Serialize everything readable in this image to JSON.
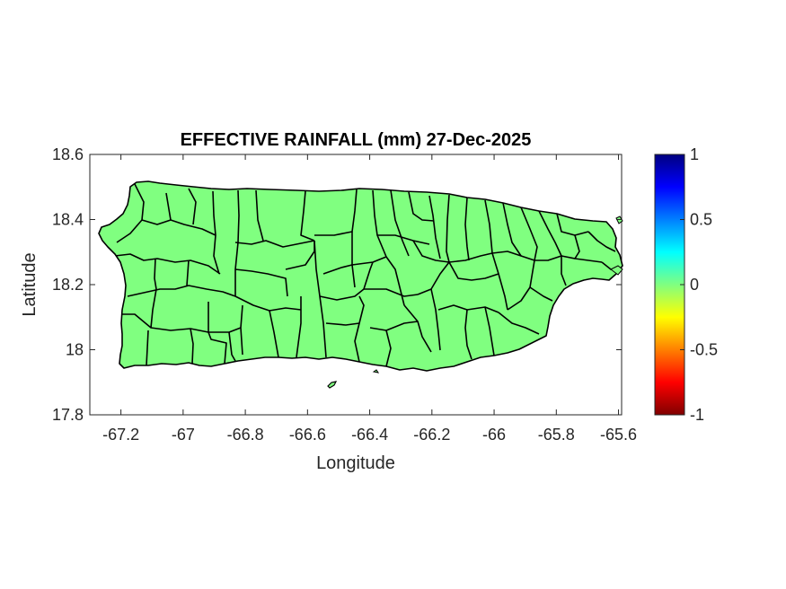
{
  "chart_data": {
    "type": "map",
    "title": "EFFECTIVE RAINFALL (mm) 27-Dec-2025",
    "xlabel": "Longitude",
    "ylabel": "Latitude",
    "xlim": [
      -67.3,
      -65.59
    ],
    "ylim": [
      17.8,
      18.6
    ],
    "x_ticks": [
      -67.2,
      -67,
      -66.8,
      -66.6,
      -66.4,
      -66.2,
      -66,
      -65.8,
      -65.6
    ],
    "x_tick_labels": [
      "-67.2",
      "-67",
      "-66.8",
      "-66.6",
      "-66.4",
      "-66.2",
      "-66",
      "-65.8",
      "-65.6"
    ],
    "y_ticks": [
      17.8,
      18,
      18.2,
      18.4,
      18.6
    ],
    "y_tick_labels": [
      "17.8",
      "18",
      "18.2",
      "18.4",
      "18.6"
    ],
    "colorbar": {
      "colormap": "jet",
      "range": [
        -1,
        1
      ],
      "ticks": [
        1,
        0.5,
        0,
        -0.5,
        -1
      ],
      "tick_labels": [
        "1",
        "0.5",
        "0",
        "-0.5",
        "-1"
      ]
    },
    "municipality_value": 0,
    "fill_color": "#80ff80",
    "grid": false
  }
}
